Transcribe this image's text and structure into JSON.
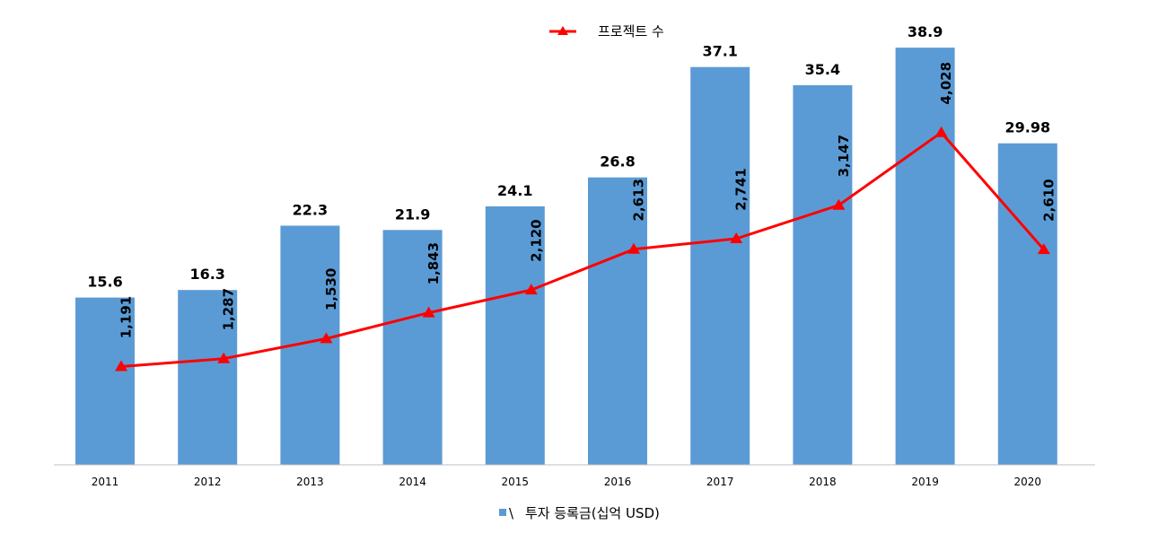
{
  "chart_data": {
    "type": "bar",
    "categories": [
      "2011",
      "2012",
      "2013",
      "2014",
      "2015",
      "2016",
      "2017",
      "2018",
      "2019",
      "2020"
    ],
    "series": [
      {
        "name": "투자 등록금(십억 USD)",
        "type": "bar",
        "color": "#5B9BD5",
        "values": [
          15.6,
          16.3,
          22.3,
          21.9,
          24.1,
          26.8,
          37.1,
          35.4,
          38.9,
          29.98
        ],
        "labels": [
          "15.6",
          "16.3",
          "22.3",
          "21.9",
          "24.1",
          "26.8",
          "37.1",
          "35.4",
          "38.9",
          "29.98"
        ]
      },
      {
        "name": "프로젝트 수",
        "type": "line",
        "color": "#FF0000",
        "marker": "triangle",
        "values": [
          1191,
          1287,
          1530,
          1843,
          2120,
          2613,
          2741,
          3147,
          4028,
          2610
        ],
        "labels": [
          "1,191",
          "1,287",
          "1,530",
          "1,843",
          "2,120",
          "2,613",
          "2,741",
          "3,147",
          "4,028",
          "2,610"
        ]
      }
    ],
    "bar_axis_range": [
      0,
      40
    ],
    "line_axis_range": [
      0,
      5200
    ],
    "legend_line_text": "프로젝트 수",
    "legend_bar_prefix": "\\",
    "legend_bar_text": "투자 등록금(십억 USD)",
    "legend_position": "top-center (line), bottom-center (bars)"
  }
}
